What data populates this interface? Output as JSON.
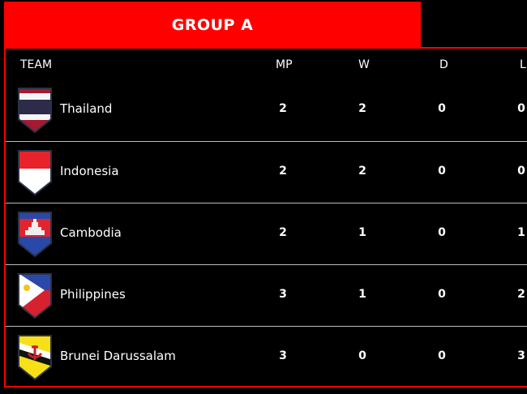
{
  "group_title": "GROUP A",
  "columns": {
    "team": "TEAM",
    "mp": "MP",
    "w": "W",
    "d": "D",
    "l": "L"
  },
  "rows": [
    {
      "team": "Thailand",
      "flag": "thailand-flag",
      "mp": "2",
      "w": "2",
      "d": "0",
      "l": "0"
    },
    {
      "team": "Indonesia",
      "flag": "indonesia-flag",
      "mp": "2",
      "w": "2",
      "d": "0",
      "l": "0"
    },
    {
      "team": "Cambodia",
      "flag": "cambodia-flag",
      "mp": "2",
      "w": "1",
      "d": "0",
      "l": "1"
    },
    {
      "team": "Philippines",
      "flag": "philippines-flag",
      "mp": "3",
      "w": "1",
      "d": "0",
      "l": "2"
    },
    {
      "team": "Brunei Darussalam",
      "flag": "brunei-flag",
      "mp": "3",
      "w": "0",
      "d": "0",
      "l": "3"
    }
  ],
  "colors": {
    "accent": "#fe0000",
    "background": "#000000"
  }
}
